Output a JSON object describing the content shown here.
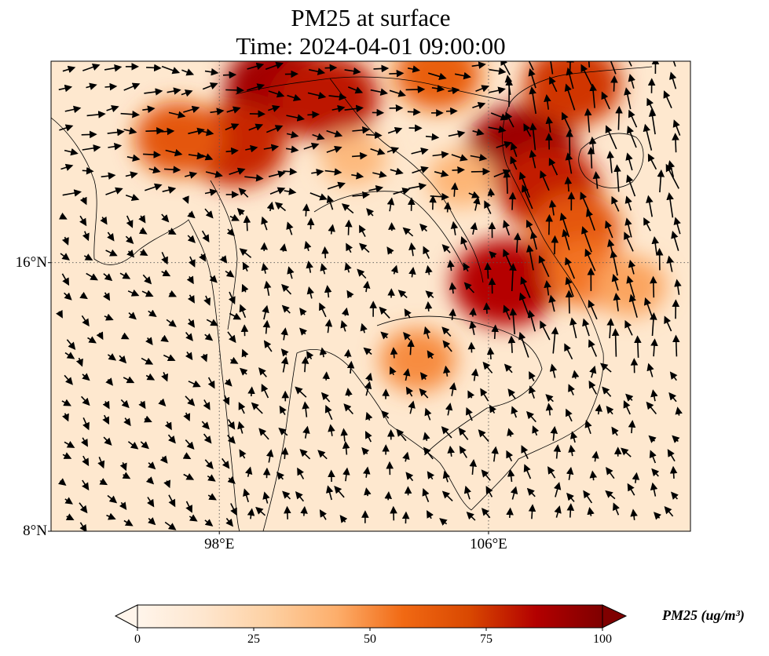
{
  "title": {
    "line1": "PM25 at surface",
    "line2": "Time: 2024-04-01 09:00:00"
  },
  "map": {
    "lat_labels": [
      {
        "lat": 16,
        "label": "16°N"
      },
      {
        "lat": 8,
        "label": "8°N"
      }
    ],
    "lon_labels": [
      {
        "lon": 98,
        "label": "98°E"
      },
      {
        "lon": 106,
        "label": "106°E"
      }
    ],
    "gridlines": "dotted",
    "pollution_hotspots": [
      {
        "lon": 99.8,
        "lat": 21.2,
        "pm25": 90
      },
      {
        "lon": 101.2,
        "lat": 20.9,
        "pm25": 82
      },
      {
        "lon": 98.5,
        "lat": 19.5,
        "pm25": 78
      },
      {
        "lon": 96.8,
        "lat": 19.7,
        "pm25": 65
      },
      {
        "lon": 107.0,
        "lat": 19.3,
        "pm25": 92
      },
      {
        "lon": 107.8,
        "lat": 18.2,
        "pm25": 80
      },
      {
        "lon": 108.5,
        "lat": 21.3,
        "pm25": 75
      },
      {
        "lon": 104.5,
        "lat": 21.6,
        "pm25": 62
      },
      {
        "lon": 108.6,
        "lat": 17.0,
        "pm25": 65
      },
      {
        "lon": 106.5,
        "lat": 15.4,
        "pm25": 85
      },
      {
        "lon": 108.9,
        "lat": 15.7,
        "pm25": 55
      },
      {
        "lon": 103.9,
        "lat": 13.1,
        "pm25": 50
      },
      {
        "lon": 110.2,
        "lat": 15.3,
        "pm25": 45
      },
      {
        "lon": 102.0,
        "lat": 19.1,
        "pm25": 38
      },
      {
        "lon": 105.2,
        "lat": 18.5,
        "pm25": 40
      }
    ]
  },
  "colorbar": {
    "colors": [
      "#fff5eb",
      "#fee6ce",
      "#fdd0a2",
      "#fdae6b",
      "#f16913",
      "#d94801",
      "#b30000",
      "#7f0000"
    ],
    "min": 0,
    "max": 100,
    "extend": "both",
    "ticks": [
      {
        "value": 0,
        "label": "0"
      },
      {
        "value": 25,
        "label": "25"
      },
      {
        "value": 50,
        "label": "50"
      },
      {
        "value": 75,
        "label": "75"
      },
      {
        "value": 100,
        "label": "100"
      }
    ],
    "label": "PM25 (ug/m³)"
  }
}
